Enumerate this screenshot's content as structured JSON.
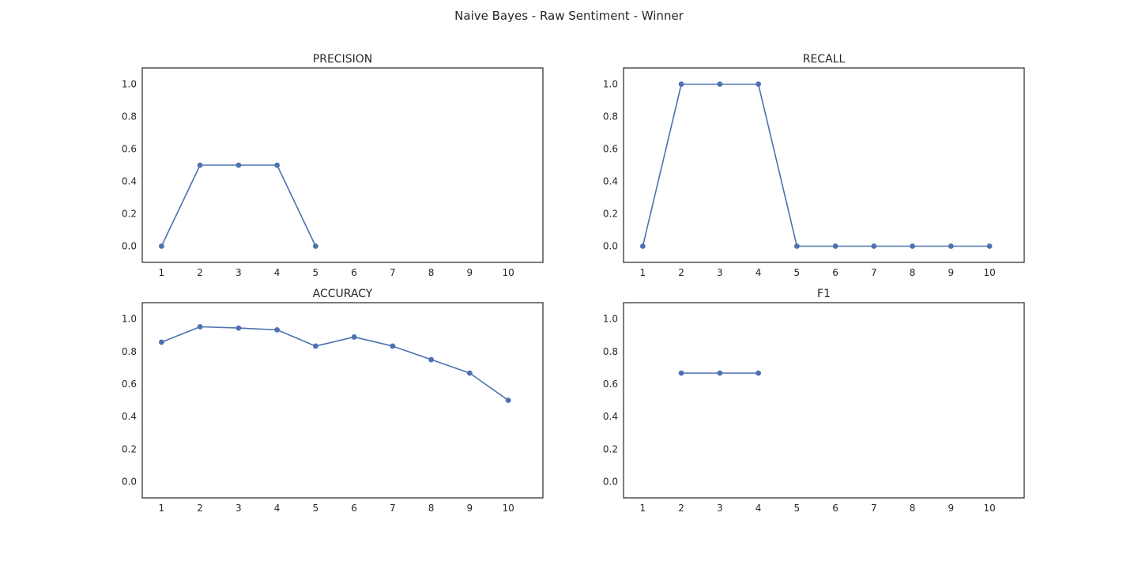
{
  "figure": {
    "title": "Naive Bayes - Raw Sentiment - Winner",
    "line_color": "#4c72b0"
  },
  "chart_data": [
    {
      "type": "line",
      "title": "PRECISION",
      "x": [
        1,
        2,
        3,
        4,
        5,
        6,
        7,
        8,
        9,
        10
      ],
      "xticks": [
        "1",
        "2",
        "3",
        "4",
        "5",
        "6",
        "7",
        "8",
        "9",
        "10"
      ],
      "series": [
        {
          "values": [
            0.0,
            0.5,
            0.5,
            0.5,
            0.0,
            null,
            null,
            null,
            null,
            null
          ]
        }
      ],
      "yticks": [
        "0.0",
        "0.2",
        "0.4",
        "0.6",
        "0.8",
        "1.0"
      ],
      "ylim": [
        -0.1,
        1.1
      ],
      "xlim": [
        0.5,
        10.9
      ],
      "grid": false
    },
    {
      "type": "line",
      "title": "RECALL",
      "x": [
        1,
        2,
        3,
        4,
        5,
        6,
        7,
        8,
        9,
        10
      ],
      "xticks": [
        "1",
        "2",
        "3",
        "4",
        "5",
        "6",
        "7",
        "8",
        "9",
        "10"
      ],
      "series": [
        {
          "values": [
            0.0,
            1.0,
            1.0,
            1.0,
            0.0,
            0.0,
            0.0,
            0.0,
            0.0,
            0.0
          ]
        }
      ],
      "yticks": [
        "0.0",
        "0.2",
        "0.4",
        "0.6",
        "0.8",
        "1.0"
      ],
      "ylim": [
        -0.1,
        1.1
      ],
      "xlim": [
        0.5,
        10.9
      ],
      "grid": false
    },
    {
      "type": "line",
      "title": "ACCURACY",
      "x": [
        1,
        2,
        3,
        4,
        5,
        6,
        7,
        8,
        9,
        10
      ],
      "xticks": [
        "1",
        "2",
        "3",
        "4",
        "5",
        "6",
        "7",
        "8",
        "9",
        "10"
      ],
      "series": [
        {
          "values": [
            0.857,
            0.952,
            0.944,
            0.933,
            0.833,
            0.889,
            0.833,
            0.75,
            0.667,
            0.5
          ]
        }
      ],
      "yticks": [
        "0.0",
        "0.2",
        "0.4",
        "0.6",
        "0.8",
        "1.0"
      ],
      "ylim": [
        -0.1,
        1.1
      ],
      "xlim": [
        0.5,
        10.9
      ],
      "grid": false
    },
    {
      "type": "line",
      "title": "F1",
      "x": [
        1,
        2,
        3,
        4,
        5,
        6,
        7,
        8,
        9,
        10
      ],
      "xticks": [
        "1",
        "2",
        "3",
        "4",
        "5",
        "6",
        "7",
        "8",
        "9",
        "10"
      ],
      "series": [
        {
          "values": [
            null,
            0.667,
            0.667,
            0.667,
            null,
            null,
            null,
            null,
            null,
            null
          ]
        }
      ],
      "yticks": [
        "0.0",
        "0.2",
        "0.4",
        "0.6",
        "0.8",
        "1.0"
      ],
      "ylim": [
        -0.1,
        1.1
      ],
      "xlim": [
        0.5,
        10.9
      ],
      "grid": false
    }
  ]
}
